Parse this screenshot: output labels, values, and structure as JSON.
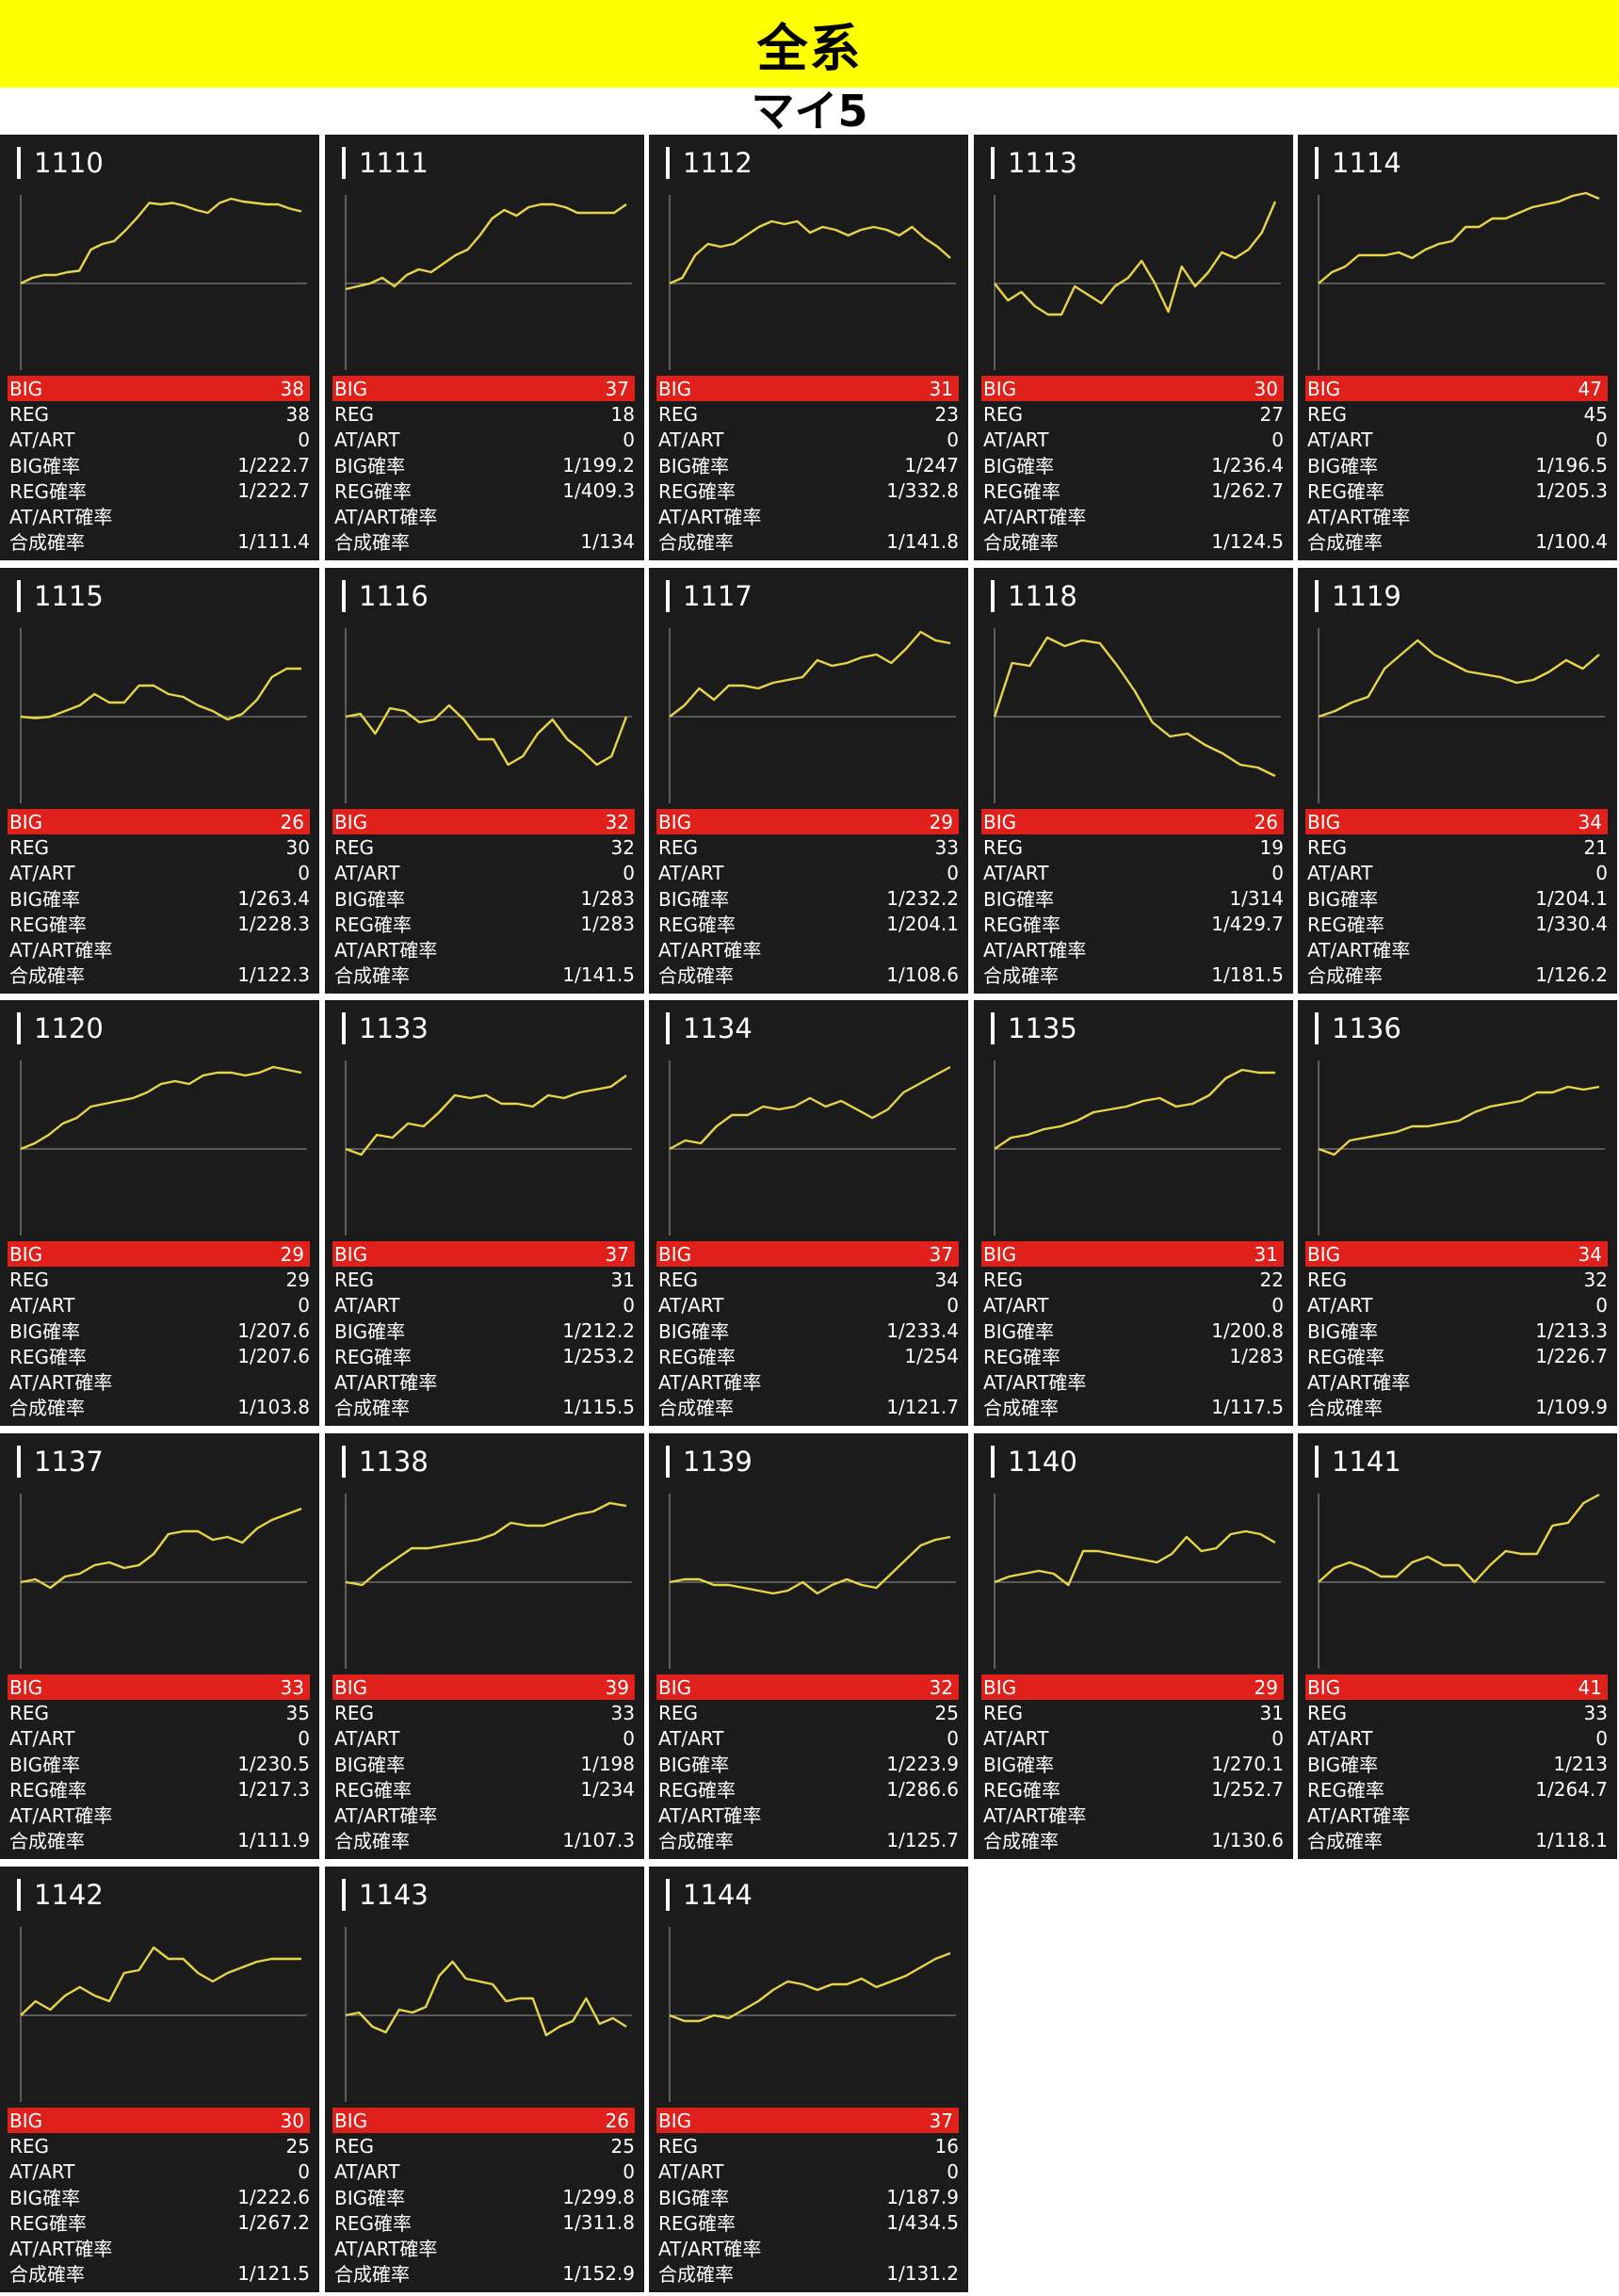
{
  "header": {
    "title": "全系",
    "subtitle": "マイ5"
  },
  "labels": {
    "big": "BIG",
    "reg": "REG",
    "atart": "AT/ART",
    "big_rate": "BIG確率",
    "reg_rate": "REG確率",
    "atart_rate": "AT/ART確率",
    "combined_rate": "合成確率"
  },
  "colors": {
    "banner": "#ffff00",
    "card_bg": "#1b1b1b",
    "big_row": "#e0201a",
    "line": "#e8d44a",
    "baseline": "#9a9a9a"
  },
  "machines": [
    {
      "number": "1110",
      "big": "38",
      "reg": "38",
      "atart": "0",
      "big_rate": "1/222.7",
      "reg_rate": "1/222.7",
      "atart_rate": "",
      "combined_rate": "1/111.4",
      "trend": [
        0,
        4,
        6,
        6,
        8,
        9,
        24,
        28,
        30,
        38,
        47,
        57,
        56,
        57,
        55,
        52,
        50,
        57,
        60,
        58,
        57,
        56,
        56,
        53,
        51
      ]
    },
    {
      "number": "1111",
      "big": "37",
      "reg": "18",
      "atart": "0",
      "big_rate": "1/199.2",
      "reg_rate": "1/409.3",
      "atart_rate": "",
      "combined_rate": "1/134",
      "trend": [
        -4,
        -2,
        0,
        4,
        -2,
        6,
        10,
        8,
        14,
        20,
        24,
        34,
        46,
        52,
        48,
        54,
        56,
        56,
        54,
        50,
        50,
        50,
        50,
        56
      ]
    },
    {
      "number": "1112",
      "big": "31",
      "reg": "23",
      "atart": "0",
      "big_rate": "1/247",
      "reg_rate": "1/332.8",
      "atart_rate": "",
      "combined_rate": "1/141.8",
      "trend": [
        0,
        4,
        20,
        28,
        26,
        28,
        34,
        40,
        44,
        42,
        44,
        36,
        40,
        38,
        34,
        38,
        40,
        38,
        34,
        40,
        32,
        26,
        18
      ]
    },
    {
      "number": "1113",
      "big": "30",
      "reg": "27",
      "atart": "0",
      "big_rate": "1/236.4",
      "reg_rate": "1/262.7",
      "atart_rate": "",
      "combined_rate": "1/124.5",
      "trend": [
        0,
        -12,
        -6,
        -16,
        -22,
        -22,
        -2,
        -8,
        -14,
        -2,
        4,
        16,
        0,
        -20,
        12,
        -2,
        8,
        22,
        18,
        24,
        36,
        58
      ]
    },
    {
      "number": "1114",
      "big": "47",
      "reg": "45",
      "atart": "0",
      "big_rate": "1/196.5",
      "reg_rate": "1/205.3",
      "atart_rate": "",
      "combined_rate": "1/100.4",
      "trend": [
        0,
        8,
        12,
        20,
        20,
        20,
        22,
        18,
        24,
        28,
        30,
        40,
        40,
        46,
        46,
        50,
        54,
        56,
        58,
        62,
        64,
        60
      ]
    },
    {
      "number": "1115",
      "big": "26",
      "reg": "30",
      "atart": "0",
      "big_rate": "1/263.4",
      "reg_rate": "1/228.3",
      "atart_rate": "",
      "combined_rate": "1/122.3",
      "trend": [
        0,
        -1,
        0,
        4,
        8,
        16,
        10,
        10,
        22,
        22,
        16,
        14,
        8,
        4,
        -2,
        2,
        12,
        28,
        34,
        34
      ]
    },
    {
      "number": "1116",
      "big": "32",
      "reg": "32",
      "atart": "0",
      "big_rate": "1/283",
      "reg_rate": "1/283",
      "atart_rate": "",
      "combined_rate": "1/141.5",
      "trend": [
        0,
        2,
        -12,
        6,
        4,
        -4,
        -2,
        8,
        -2,
        -16,
        -16,
        -34,
        -28,
        -12,
        -2,
        -16,
        -24,
        -34,
        -28,
        0
      ]
    },
    {
      "number": "1117",
      "big": "29",
      "reg": "33",
      "atart": "0",
      "big_rate": "1/232.2",
      "reg_rate": "1/204.1",
      "atart_rate": "",
      "combined_rate": "1/108.6",
      "trend": [
        0,
        8,
        20,
        12,
        22,
        22,
        20,
        24,
        26,
        28,
        40,
        36,
        38,
        42,
        44,
        38,
        48,
        60,
        54,
        52
      ]
    },
    {
      "number": "1118",
      "big": "26",
      "reg": "19",
      "atart": "0",
      "big_rate": "1/314",
      "reg_rate": "1/429.7",
      "atart_rate": "",
      "combined_rate": "1/181.5",
      "trend": [
        0,
        38,
        36,
        56,
        50,
        54,
        52,
        36,
        18,
        -4,
        -14,
        -12,
        -20,
        -26,
        -34,
        -36,
        -42
      ]
    },
    {
      "number": "1119",
      "big": "34",
      "reg": "21",
      "atart": "0",
      "big_rate": "1/204.1",
      "reg_rate": "1/330.4",
      "atart_rate": "",
      "combined_rate": "1/126.2",
      "trend": [
        0,
        4,
        10,
        14,
        34,
        44,
        54,
        44,
        38,
        32,
        30,
        28,
        24,
        26,
        32,
        40,
        34,
        44
      ]
    },
    {
      "number": "1120",
      "big": "29",
      "reg": "29",
      "atart": "0",
      "big_rate": "1/207.6",
      "reg_rate": "1/207.6",
      "atart_rate": "",
      "combined_rate": "1/103.8",
      "trend": [
        0,
        4,
        10,
        18,
        22,
        30,
        32,
        34,
        36,
        40,
        46,
        48,
        46,
        52,
        54,
        54,
        52,
        54,
        58,
        56,
        54
      ]
    },
    {
      "number": "1133",
      "big": "37",
      "reg": "31",
      "atart": "0",
      "big_rate": "1/212.2",
      "reg_rate": "1/253.2",
      "atart_rate": "",
      "combined_rate": "1/115.5",
      "trend": [
        0,
        -4,
        10,
        8,
        18,
        16,
        26,
        38,
        36,
        38,
        32,
        32,
        30,
        38,
        36,
        40,
        42,
        44,
        52
      ]
    },
    {
      "number": "1134",
      "big": "37",
      "reg": "34",
      "atart": "0",
      "big_rate": "1/233.4",
      "reg_rate": "1/254",
      "atart_rate": "",
      "combined_rate": "1/121.7",
      "trend": [
        0,
        6,
        4,
        16,
        24,
        24,
        30,
        28,
        30,
        36,
        30,
        34,
        28,
        22,
        28,
        40,
        46,
        52,
        58
      ]
    },
    {
      "number": "1135",
      "big": "31",
      "reg": "22",
      "atart": "0",
      "big_rate": "1/200.8",
      "reg_rate": "1/283",
      "atart_rate": "",
      "combined_rate": "1/117.5",
      "trend": [
        0,
        8,
        10,
        14,
        16,
        20,
        26,
        28,
        30,
        34,
        36,
        30,
        32,
        38,
        50,
        56,
        54,
        54
      ]
    },
    {
      "number": "1136",
      "big": "34",
      "reg": "32",
      "atart": "0",
      "big_rate": "1/213.3",
      "reg_rate": "1/226.7",
      "atart_rate": "",
      "combined_rate": "1/109.9",
      "trend": [
        0,
        -4,
        6,
        8,
        10,
        12,
        16,
        16,
        18,
        20,
        26,
        30,
        32,
        34,
        40,
        40,
        44,
        42,
        44
      ]
    },
    {
      "number": "1137",
      "big": "33",
      "reg": "35",
      "atart": "0",
      "big_rate": "1/230.5",
      "reg_rate": "1/217.3",
      "atart_rate": "",
      "combined_rate": "1/111.9",
      "trend": [
        0,
        2,
        -4,
        4,
        6,
        12,
        14,
        10,
        12,
        20,
        34,
        36,
        36,
        30,
        32,
        28,
        38,
        44,
        48,
        52
      ]
    },
    {
      "number": "1138",
      "big": "39",
      "reg": "33",
      "atart": "0",
      "big_rate": "1/198",
      "reg_rate": "1/234",
      "atart_rate": "",
      "combined_rate": "1/107.3",
      "trend": [
        0,
        -2,
        8,
        16,
        24,
        24,
        26,
        28,
        30,
        34,
        42,
        40,
        40,
        44,
        48,
        50,
        56,
        54
      ]
    },
    {
      "number": "1139",
      "big": "32",
      "reg": "25",
      "atart": "0",
      "big_rate": "1/223.9",
      "reg_rate": "1/286.6",
      "atart_rate": "",
      "combined_rate": "1/125.7",
      "trend": [
        0,
        2,
        2,
        -2,
        -2,
        -4,
        -6,
        -8,
        -6,
        0,
        -8,
        -2,
        2,
        -2,
        -4,
        6,
        16,
        26,
        30,
        32
      ]
    },
    {
      "number": "1140",
      "big": "29",
      "reg": "31",
      "atart": "0",
      "big_rate": "1/270.1",
      "reg_rate": "1/252.7",
      "atart_rate": "",
      "combined_rate": "1/130.6",
      "trend": [
        0,
        4,
        6,
        8,
        6,
        -2,
        22,
        22,
        20,
        18,
        16,
        14,
        20,
        32,
        22,
        24,
        34,
        36,
        34,
        28
      ]
    },
    {
      "number": "1141",
      "big": "41",
      "reg": "33",
      "atart": "0",
      "big_rate": "1/213",
      "reg_rate": "1/264.7",
      "atart_rate": "",
      "combined_rate": "1/118.1",
      "trend": [
        0,
        10,
        14,
        10,
        4,
        4,
        14,
        18,
        12,
        12,
        0,
        12,
        22,
        20,
        20,
        40,
        42,
        56,
        62
      ]
    },
    {
      "number": "1142",
      "big": "30",
      "reg": "25",
      "atart": "0",
      "big_rate": "1/222.6",
      "reg_rate": "1/267.2",
      "atart_rate": "",
      "combined_rate": "1/121.5",
      "trend": [
        0,
        10,
        4,
        14,
        20,
        14,
        10,
        30,
        32,
        48,
        40,
        40,
        30,
        24,
        30,
        34,
        38,
        40,
        40,
        40
      ]
    },
    {
      "number": "1143",
      "big": "26",
      "reg": "25",
      "atart": "0",
      "big_rate": "1/299.8",
      "reg_rate": "1/311.8",
      "atart_rate": "",
      "combined_rate": "1/152.9",
      "trend": [
        0,
        2,
        -8,
        -12,
        4,
        2,
        6,
        28,
        38,
        26,
        24,
        22,
        10,
        12,
        12,
        -14,
        -8,
        -4,
        12,
        -6,
        -2,
        -8
      ]
    },
    {
      "number": "1144",
      "big": "37",
      "reg": "16",
      "atart": "0",
      "big_rate": "1/187.9",
      "reg_rate": "1/434.5",
      "atart_rate": "",
      "combined_rate": "1/131.2",
      "trend": [
        0,
        -4,
        -4,
        0,
        -2,
        4,
        10,
        18,
        24,
        22,
        18,
        22,
        22,
        26,
        20,
        24,
        28,
        34,
        40,
        44
      ]
    }
  ]
}
